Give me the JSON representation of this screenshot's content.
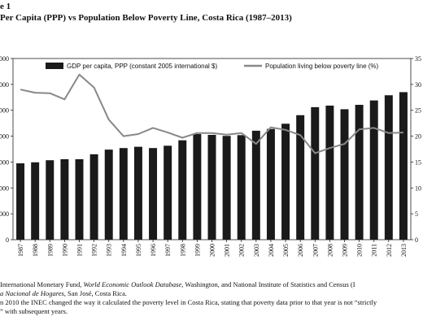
{
  "figure": {
    "label": "e 1",
    "title": "Per Capita (PPP) vs Population Below Poverty Line, Costa Rica (1987–2013)"
  },
  "notes": {
    "source_prefix": " International Monetary Fund, ",
    "source_weo": "World Economic Outlook Database",
    "source_middle": ", Washington, and National Institute of Statistics and Census (I",
    "source_line2_italic": "a Nacional de Hogares",
    "source_line2_rest": ", San José, Costa Rica.",
    "note_line1": "n 2010 the INEC changed the way it calculated the poverty level in Costa Rica, stating that poverty data prior to that year is not “strictly",
    "note_line2": "” with subsequent years."
  },
  "chart_data": {
    "type": "bar",
    "title": "",
    "xlabel": "",
    "ylabel": "",
    "categories": [
      "1987",
      "1988",
      "1989",
      "1990",
      "1991",
      "1992",
      "1993",
      "1994",
      "1995",
      "1996",
      "1997",
      "1998",
      "1999",
      "2000",
      "2001",
      "2002",
      "2003",
      "2004",
      "2005",
      "2006",
      "2007",
      "2008",
      "2009",
      "2010",
      "2011",
      "2012",
      "2013"
    ],
    "left_axis": {
      "ylim": [
        0,
        7000
      ],
      "ticks": [
        0,
        1000,
        2000,
        3000,
        4000,
        5000,
        6000,
        7000
      ],
      "tick_labels": [
        "0",
        "000",
        "000",
        "000",
        "000",
        "000",
        "000",
        "000"
      ]
    },
    "right_axis": {
      "ylim": [
        0,
        35
      ],
      "ticks": [
        0,
        5,
        10,
        15,
        20,
        25,
        30,
        35
      ],
      "tick_labels": [
        "0",
        "5",
        "10",
        "15",
        "20",
        "25",
        "30",
        "35"
      ]
    },
    "legend": {
      "position": "top"
    },
    "series": [
      {
        "name": "GDP per capita, PPP (constant 2005 international $)",
        "type": "bar",
        "axis": "left",
        "color": "#1a1a1a",
        "values": [
          2950,
          2990,
          3070,
          3110,
          3110,
          3300,
          3480,
          3540,
          3590,
          3540,
          3630,
          3840,
          4080,
          4050,
          4010,
          4040,
          4210,
          4280,
          4480,
          4810,
          5120,
          5180,
          5040,
          5210,
          5380,
          5580,
          5700
        ]
      },
      {
        "name": "Population living below poverty line (%)",
        "type": "line",
        "axis": "right",
        "color": "#888888",
        "values": [
          29.0,
          28.4,
          28.3,
          27.1,
          31.9,
          29.4,
          23.2,
          20.0,
          20.4,
          21.6,
          20.7,
          19.7,
          20.6,
          20.6,
          20.3,
          20.6,
          18.5,
          21.7,
          21.2,
          20.2,
          16.7,
          17.7,
          18.5,
          21.3,
          21.6,
          20.6,
          20.7
        ]
      }
    ]
  }
}
